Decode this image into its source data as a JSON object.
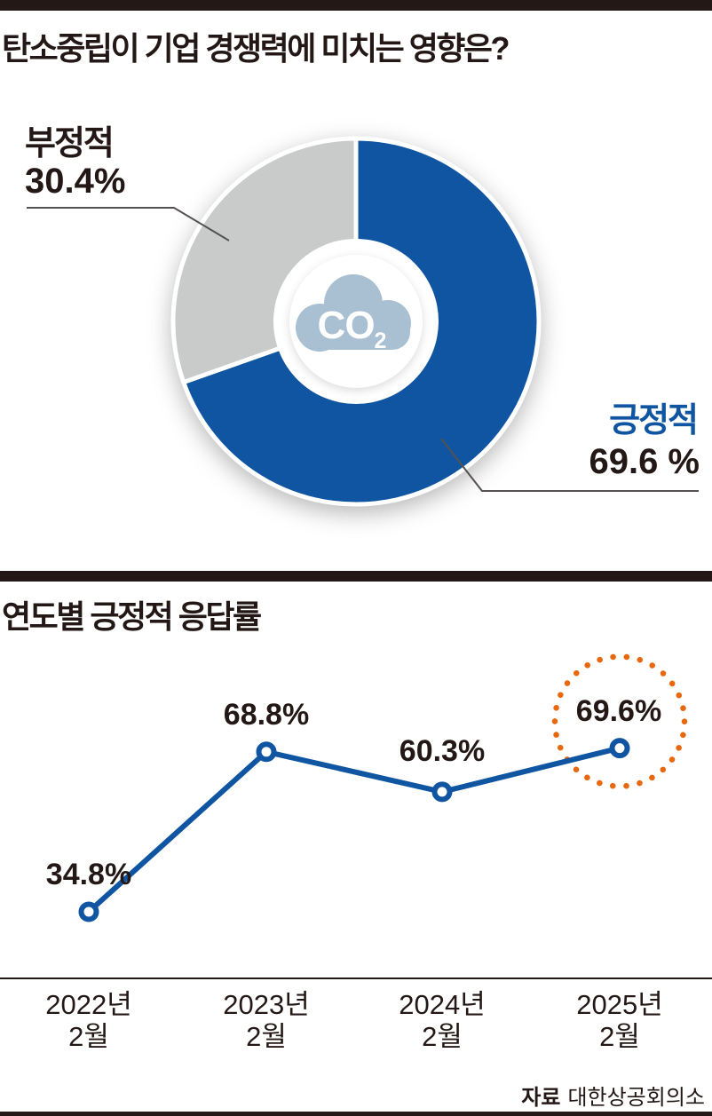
{
  "colors": {
    "dark": "#231815",
    "blue": "#0f55a1",
    "gray": "#c9caca",
    "orange": "#e8680f",
    "cloud": "#a9c0d3",
    "leader_line": "#555150"
  },
  "donut_section": {
    "title": "탄소중립이 기업 경쟁력에 미치는 영향은?",
    "negative_label": "부정적",
    "negative_value": "30.4%",
    "positive_label": "긍정적",
    "positive_value": "69.6 %",
    "center_icon_main": "CO",
    "center_icon_sub": "2"
  },
  "line_section": {
    "title": "연도별 긍정적 응답률",
    "point_labels": [
      "34.8%",
      "68.8%",
      "60.3%",
      "69.6%"
    ],
    "ticks": [
      {
        "line1": "2022년",
        "line2": "2월"
      },
      {
        "line1": "2023년",
        "line2": "2월"
      },
      {
        "line1": "2024년",
        "line2": "2월"
      },
      {
        "line1": "2025년",
        "line2": "2월"
      }
    ],
    "source_label": "자료",
    "source_value": "대한상공회의소"
  },
  "chart_data": [
    {
      "type": "pie",
      "donut": true,
      "title": "탄소중립이 기업 경쟁력에 미치는 영향은?",
      "labels": [
        "긍정적",
        "부정적"
      ],
      "values": [
        69.6,
        30.4
      ],
      "colors": [
        "#0f55a1",
        "#c9caca"
      ],
      "start_angle_deg": 0,
      "direction": "clockwise",
      "center_icon": "CO2-cloud"
    },
    {
      "type": "line",
      "title": "연도별 긍정적 응답률",
      "categories": [
        "2022년 2월",
        "2023년 2월",
        "2024년 2월",
        "2025년 2월"
      ],
      "values": [
        34.8,
        68.8,
        60.3,
        69.6
      ],
      "unit": "%",
      "ylim": [
        0,
        100
      ],
      "grid": false,
      "line_color": "#0f55a1",
      "marker": "open-circle",
      "highlight_index": 3,
      "highlight_style": "orange-dotted-circle",
      "highlight_color": "#e8680f"
    }
  ]
}
